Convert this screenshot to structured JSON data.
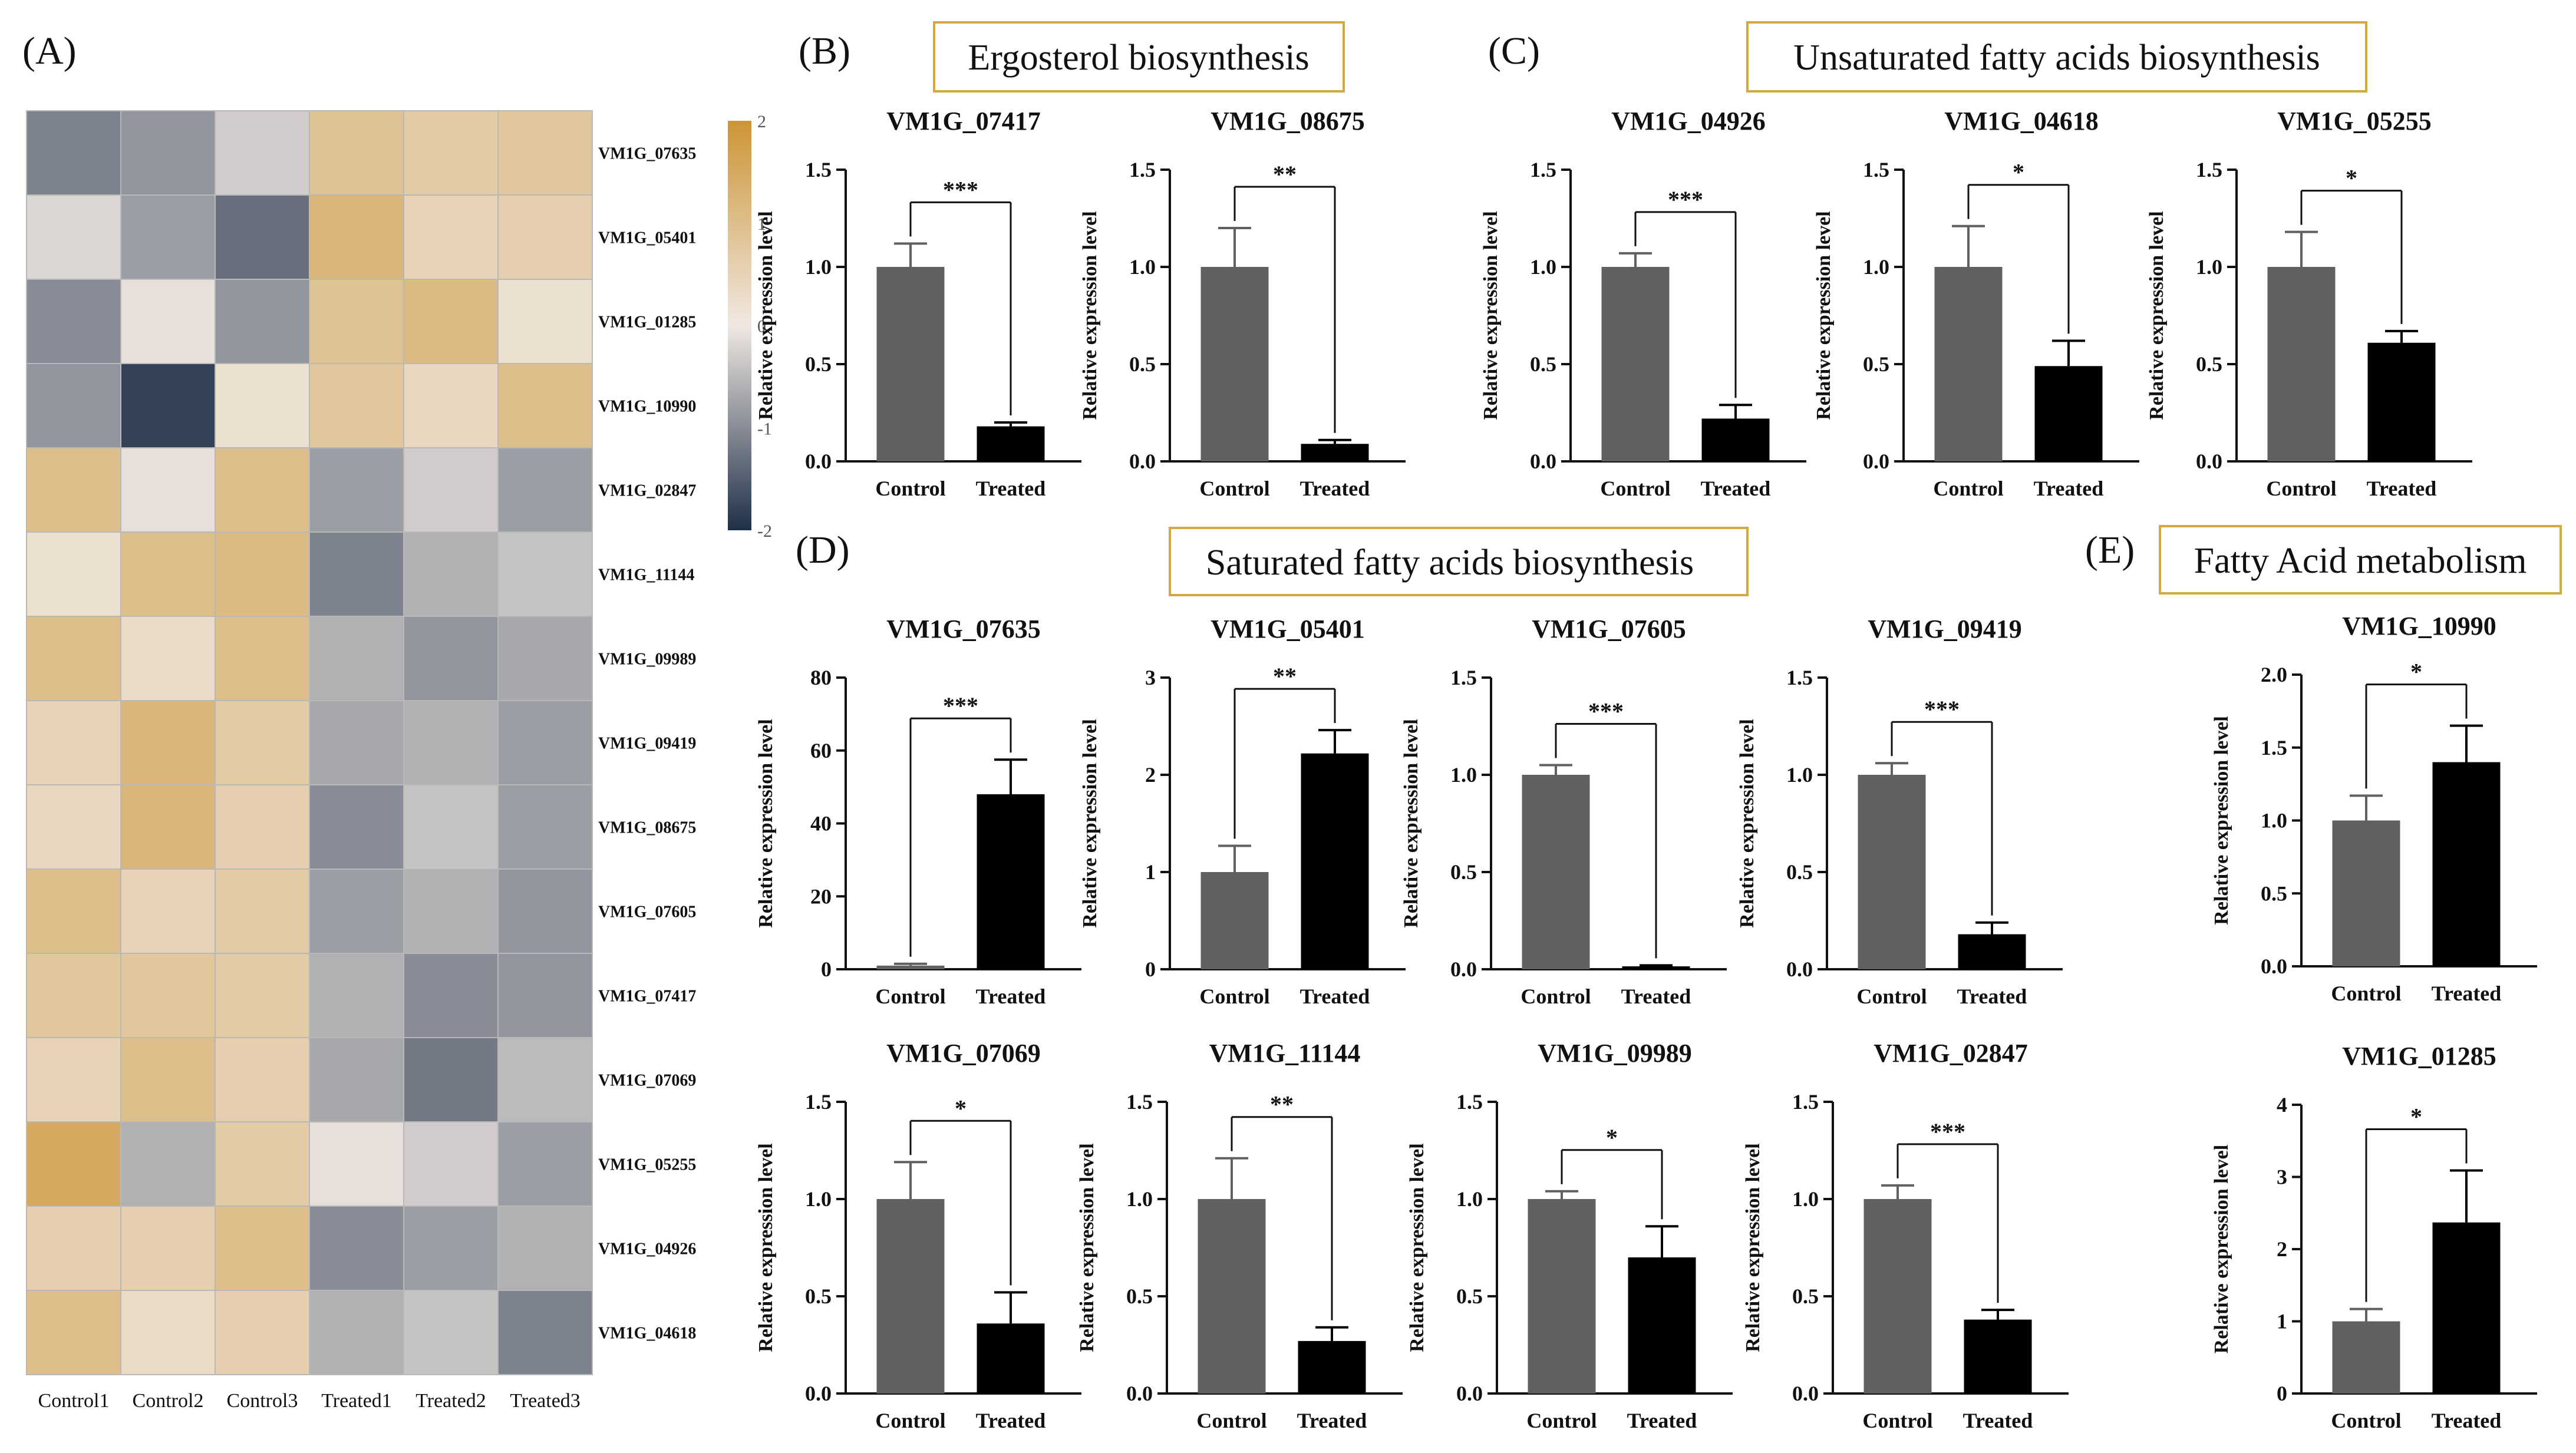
{
  "colors": {
    "control_bar": "#606060",
    "treated_bar": "#000000",
    "box_border": "#d4aa40",
    "heat_low": "#1f3049",
    "heat_mid": "#f0e8e2",
    "heat_high": "#cc9535",
    "heat_grid": "#b8b8b8"
  },
  "panels": {
    "A": "(A)",
    "B": "(B)",
    "C": "(C)",
    "D": "(D)",
    "E": "(E)"
  },
  "section_titles": {
    "B": "Ergosterol biosynthesis",
    "C": "Unsaturated fatty acids biosynthesis",
    "D": "Saturated fatty acids biosynthesis",
    "E": "Fatty Acid metabolism"
  },
  "chart_data": [
    {
      "id": "heatmap",
      "type": "heatmap",
      "columns": [
        "Control1",
        "Control2",
        "Control3",
        "Treated1",
        "Treated2",
        "Treated3"
      ],
      "rows": [
        "VM1G_07635",
        "VM1G_05401",
        "VM1G_01285",
        "VM1G_10990",
        "VM1G_02847",
        "VM1G_11144",
        "VM1G_09989",
        "VM1G_09419",
        "VM1G_08675",
        "VM1G_07605",
        "VM1G_07417",
        "VM1G_07069",
        "VM1G_05255",
        "VM1G_04926",
        "VM1G_04618"
      ],
      "values": [
        [
          -1.1,
          -0.9,
          -0.3,
          0.9,
          0.7,
          0.8
        ],
        [
          -0.2,
          -0.8,
          -1.3,
          1.2,
          0.5,
          0.6
        ],
        [
          -1.0,
          -0.1,
          -0.9,
          0.9,
          1.1,
          0.2
        ],
        [
          -0.9,
          -1.8,
          0.2,
          0.8,
          0.4,
          1.0
        ],
        [
          1.0,
          -0.1,
          1.0,
          -0.8,
          -0.3,
          -0.8
        ],
        [
          0.2,
          1.0,
          1.1,
          -1.1,
          -0.6,
          -0.4
        ],
        [
          1.0,
          0.3,
          1.0,
          -0.6,
          -0.9,
          -0.7
        ],
        [
          0.5,
          1.2,
          0.7,
          -0.7,
          -0.6,
          -0.8
        ],
        [
          0.4,
          1.2,
          0.6,
          -1.0,
          -0.4,
          -0.8
        ],
        [
          1.0,
          0.5,
          0.7,
          -0.8,
          -0.6,
          -0.9
        ],
        [
          0.8,
          0.8,
          0.7,
          -0.6,
          -1.0,
          -0.9
        ],
        [
          0.5,
          1.0,
          0.6,
          -0.7,
          -1.2,
          -0.5
        ],
        [
          1.5,
          -0.6,
          0.7,
          -0.1,
          -0.3,
          -0.8
        ],
        [
          0.6,
          0.6,
          1.0,
          -1.0,
          -0.8,
          -0.6
        ],
        [
          1.0,
          0.3,
          0.6,
          -0.6,
          -0.4,
          -1.1
        ]
      ],
      "colorbar": {
        "min": -2,
        "max": 2,
        "ticks": [
          "2",
          "1",
          "0",
          "-1",
          "-2"
        ]
      }
    },
    {
      "id": "b1",
      "type": "bar",
      "title": "VM1G_07417",
      "ylabel": "Relative expression level",
      "categories": [
        "Control",
        "Treated"
      ],
      "values": [
        1.0,
        0.18
      ],
      "errors": [
        0.12,
        0.02
      ],
      "ylim": [
        0,
        1.5
      ],
      "yticks": [
        "0.0",
        "0.5",
        "1.0",
        "1.5"
      ],
      "significance": "***"
    },
    {
      "id": "b2",
      "type": "bar",
      "title": "VM1G_08675",
      "ylabel": "Relative expression level",
      "categories": [
        "Control",
        "Treated"
      ],
      "values": [
        1.0,
        0.09
      ],
      "errors": [
        0.2,
        0.02
      ],
      "ylim": [
        0,
        1.5
      ],
      "yticks": [
        "0.0",
        "0.5",
        "1.0",
        "1.5"
      ],
      "significance": "**"
    },
    {
      "id": "c1",
      "type": "bar",
      "title": "VM1G_04926",
      "ylabel": "Relative expression level",
      "categories": [
        "Control",
        "Treated"
      ],
      "values": [
        1.0,
        0.22
      ],
      "errors": [
        0.07,
        0.07
      ],
      "ylim": [
        0,
        1.5
      ],
      "yticks": [
        "0.0",
        "0.5",
        "1.0",
        "1.5"
      ],
      "significance": "***"
    },
    {
      "id": "c2",
      "type": "bar",
      "title": "VM1G_04618",
      "ylabel": "Relative expression level",
      "categories": [
        "Control",
        "Treated"
      ],
      "values": [
        1.0,
        0.49
      ],
      "errors": [
        0.21,
        0.13
      ],
      "ylim": [
        0,
        1.5
      ],
      "yticks": [
        "0.0",
        "0.5",
        "1.0",
        "1.5"
      ],
      "significance": "*"
    },
    {
      "id": "c3",
      "type": "bar",
      "title": "VM1G_05255",
      "ylabel": "Relative expression level",
      "categories": [
        "Control",
        "Treated"
      ],
      "values": [
        1.0,
        0.61
      ],
      "errors": [
        0.18,
        0.06
      ],
      "ylim": [
        0,
        1.5
      ],
      "yticks": [
        "0.0",
        "0.5",
        "1.0",
        "1.5"
      ],
      "significance": "*"
    },
    {
      "id": "d1",
      "type": "bar",
      "title": "VM1G_07635",
      "ylabel": "Relative expression level",
      "categories": [
        "Control",
        "Treated"
      ],
      "values": [
        1.0,
        48
      ],
      "errors": [
        0.5,
        9.5
      ],
      "ylim": [
        0,
        80
      ],
      "yticks": [
        "0",
        "20",
        "40",
        "60",
        "80"
      ],
      "significance": "***"
    },
    {
      "id": "d2",
      "type": "bar",
      "title": "VM1G_05401",
      "ylabel": "Relative expression level",
      "categories": [
        "Control",
        "Treated"
      ],
      "values": [
        1.0,
        2.22
      ],
      "errors": [
        0.27,
        0.24
      ],
      "ylim": [
        0,
        3
      ],
      "yticks": [
        "0",
        "1",
        "2",
        "3"
      ],
      "significance": "**"
    },
    {
      "id": "d3",
      "type": "bar",
      "title": "VM1G_07605",
      "ylabel": "Relative expression level",
      "categories": [
        "Control",
        "Treated"
      ],
      "values": [
        1.0,
        0.015
      ],
      "errors": [
        0.05,
        0.005
      ],
      "ylim": [
        0,
        1.5
      ],
      "yticks": [
        "0.0",
        "0.5",
        "1.0",
        "1.5"
      ],
      "significance": "***"
    },
    {
      "id": "d4",
      "type": "bar",
      "title": "VM1G_09419",
      "ylabel": "Relative expression level",
      "categories": [
        "Control",
        "Treated"
      ],
      "values": [
        1.0,
        0.18
      ],
      "errors": [
        0.06,
        0.06
      ],
      "ylim": [
        0,
        1.5
      ],
      "yticks": [
        "0.0",
        "0.5",
        "1.0",
        "1.5"
      ],
      "significance": "***"
    },
    {
      "id": "e1",
      "type": "bar",
      "title": "VM1G_10990",
      "ylabel": "Relative expression level",
      "categories": [
        "Control",
        "Treated"
      ],
      "values": [
        1.0,
        1.4
      ],
      "errors": [
        0.17,
        0.25
      ],
      "ylim": [
        0,
        2.0
      ],
      "yticks": [
        "0.0",
        "0.5",
        "1.0",
        "1.5",
        "2.0"
      ],
      "significance": "*"
    },
    {
      "id": "f1",
      "type": "bar",
      "title": "VM1G_07069",
      "ylabel": "Relative expression level",
      "categories": [
        "Control",
        "Treated"
      ],
      "values": [
        1.0,
        0.36
      ],
      "errors": [
        0.19,
        0.16
      ],
      "ylim": [
        0,
        1.5
      ],
      "yticks": [
        "0.0",
        "0.5",
        "1.0",
        "1.5"
      ],
      "significance": "*"
    },
    {
      "id": "f2",
      "type": "bar",
      "title": "VM1G_11144",
      "ylabel": "Relative expression level",
      "categories": [
        "Control",
        "Treated"
      ],
      "values": [
        1.0,
        0.27
      ],
      "errors": [
        0.21,
        0.07
      ],
      "ylim": [
        0,
        1.5
      ],
      "yticks": [
        "0.0",
        "0.5",
        "1.0",
        "1.5"
      ],
      "significance": "**"
    },
    {
      "id": "f3",
      "type": "bar",
      "title": "VM1G_09989",
      "ylabel": "Relative expression level",
      "categories": [
        "Control",
        "Treated"
      ],
      "values": [
        1.0,
        0.7
      ],
      "errors": [
        0.04,
        0.16
      ],
      "ylim": [
        0,
        1.5
      ],
      "yticks": [
        "0.0",
        "0.5",
        "1.0",
        "1.5"
      ],
      "significance": "*"
    },
    {
      "id": "f4",
      "type": "bar",
      "title": "VM1G_02847",
      "ylabel": "Relative expression level",
      "categories": [
        "Control",
        "Treated"
      ],
      "values": [
        1.0,
        0.38
      ],
      "errors": [
        0.07,
        0.05
      ],
      "ylim": [
        0,
        1.5
      ],
      "yticks": [
        "0.0",
        "0.5",
        "1.0",
        "1.5"
      ],
      "significance": "***"
    },
    {
      "id": "g1",
      "type": "bar",
      "title": "VM1G_01285",
      "ylabel": "Relative expression level",
      "categories": [
        "Control",
        "Treated"
      ],
      "values": [
        1.0,
        2.37
      ],
      "errors": [
        0.17,
        0.72
      ],
      "ylim": [
        0,
        4
      ],
      "yticks": [
        "0",
        "1",
        "2",
        "3",
        "4"
      ],
      "significance": "*"
    }
  ]
}
